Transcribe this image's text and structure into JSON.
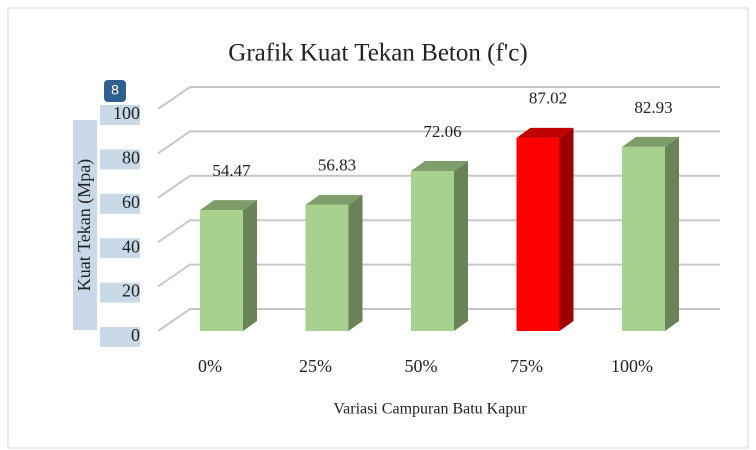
{
  "badge": "8",
  "chart_data": {
    "type": "bar3d",
    "title": "Grafik Kuat Tekan Beton (f'c)",
    "x_label": "Variasi Campuran Batu Kapur",
    "y_label": "Kuat Tekan (Mpa)",
    "categories": [
      "0%",
      "25%",
      "50%",
      "75%",
      "100%"
    ],
    "values": [
      54.47,
      56.83,
      72.06,
      87.02,
      82.93
    ],
    "colors": [
      "#a9d18e",
      "#a9d18e",
      "#a9d18e",
      "#ff0000",
      "#a9d18e"
    ],
    "ylim": [
      0,
      100
    ],
    "yticks": [
      0,
      20,
      40,
      60,
      80,
      100
    ],
    "grid": true
  }
}
